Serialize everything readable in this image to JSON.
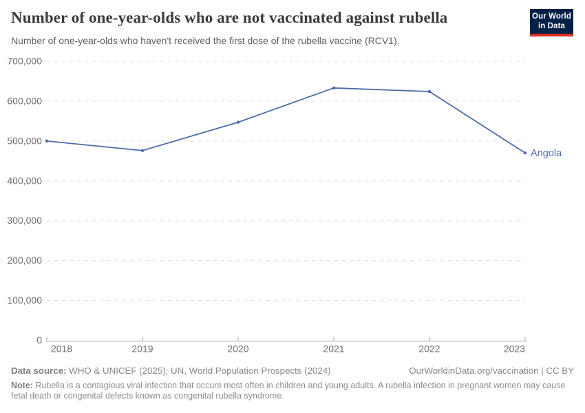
{
  "header": {
    "title": "Number of one-year-olds who are not vaccinated against rubella",
    "subtitle": "Number of one-year-olds who haven't received the first dose of the rubella vaccine (RCV1).",
    "logo": {
      "line1": "Our World",
      "line2": "in Data"
    }
  },
  "chart_data": {
    "type": "line",
    "title": "Number of one-year-olds who are not vaccinated against rubella",
    "xlabel": "",
    "ylabel": "",
    "x": [
      2018,
      2019,
      2020,
      2021,
      2022,
      2023
    ],
    "series": [
      {
        "name": "Angola",
        "color": "#4C6CA8",
        "values": [
          500000,
          476000,
          547000,
          633000,
          624000,
          470000
        ]
      }
    ],
    "ylim": [
      0,
      700000
    ],
    "ytick_step": 100000,
    "ytick_labels": [
      "0",
      "100,000",
      "200,000",
      "300,000",
      "400,000",
      "500,000",
      "600,000",
      "700,000"
    ],
    "grid": "horizontal-dashed",
    "legend": "end-of-line-label"
  },
  "colors": {
    "line": "#4C6CA8",
    "grid": "#dedede",
    "axis": "#a1a1a1",
    "tick_label": "#6e6e6e",
    "title": "#3b3b3b",
    "subtitle": "#5e5e5e",
    "footer": "#888888",
    "logo_bg": "#002147",
    "logo_red": "#dc2e22"
  },
  "footer": {
    "datasource_label": "Data source:",
    "datasource_text": "WHO & UNICEF (2025); UN, World Population Prospects (2024)",
    "attribution": "OurWorldinData.org/vaccination | CC BY",
    "note_label": "Note:",
    "note_text": "Rubella is a contagious viral infection that occurs most often in children and young adults. A rubella infection in pregnant women may cause fetal death or congenital defects known as congenital rubella syndrome."
  }
}
